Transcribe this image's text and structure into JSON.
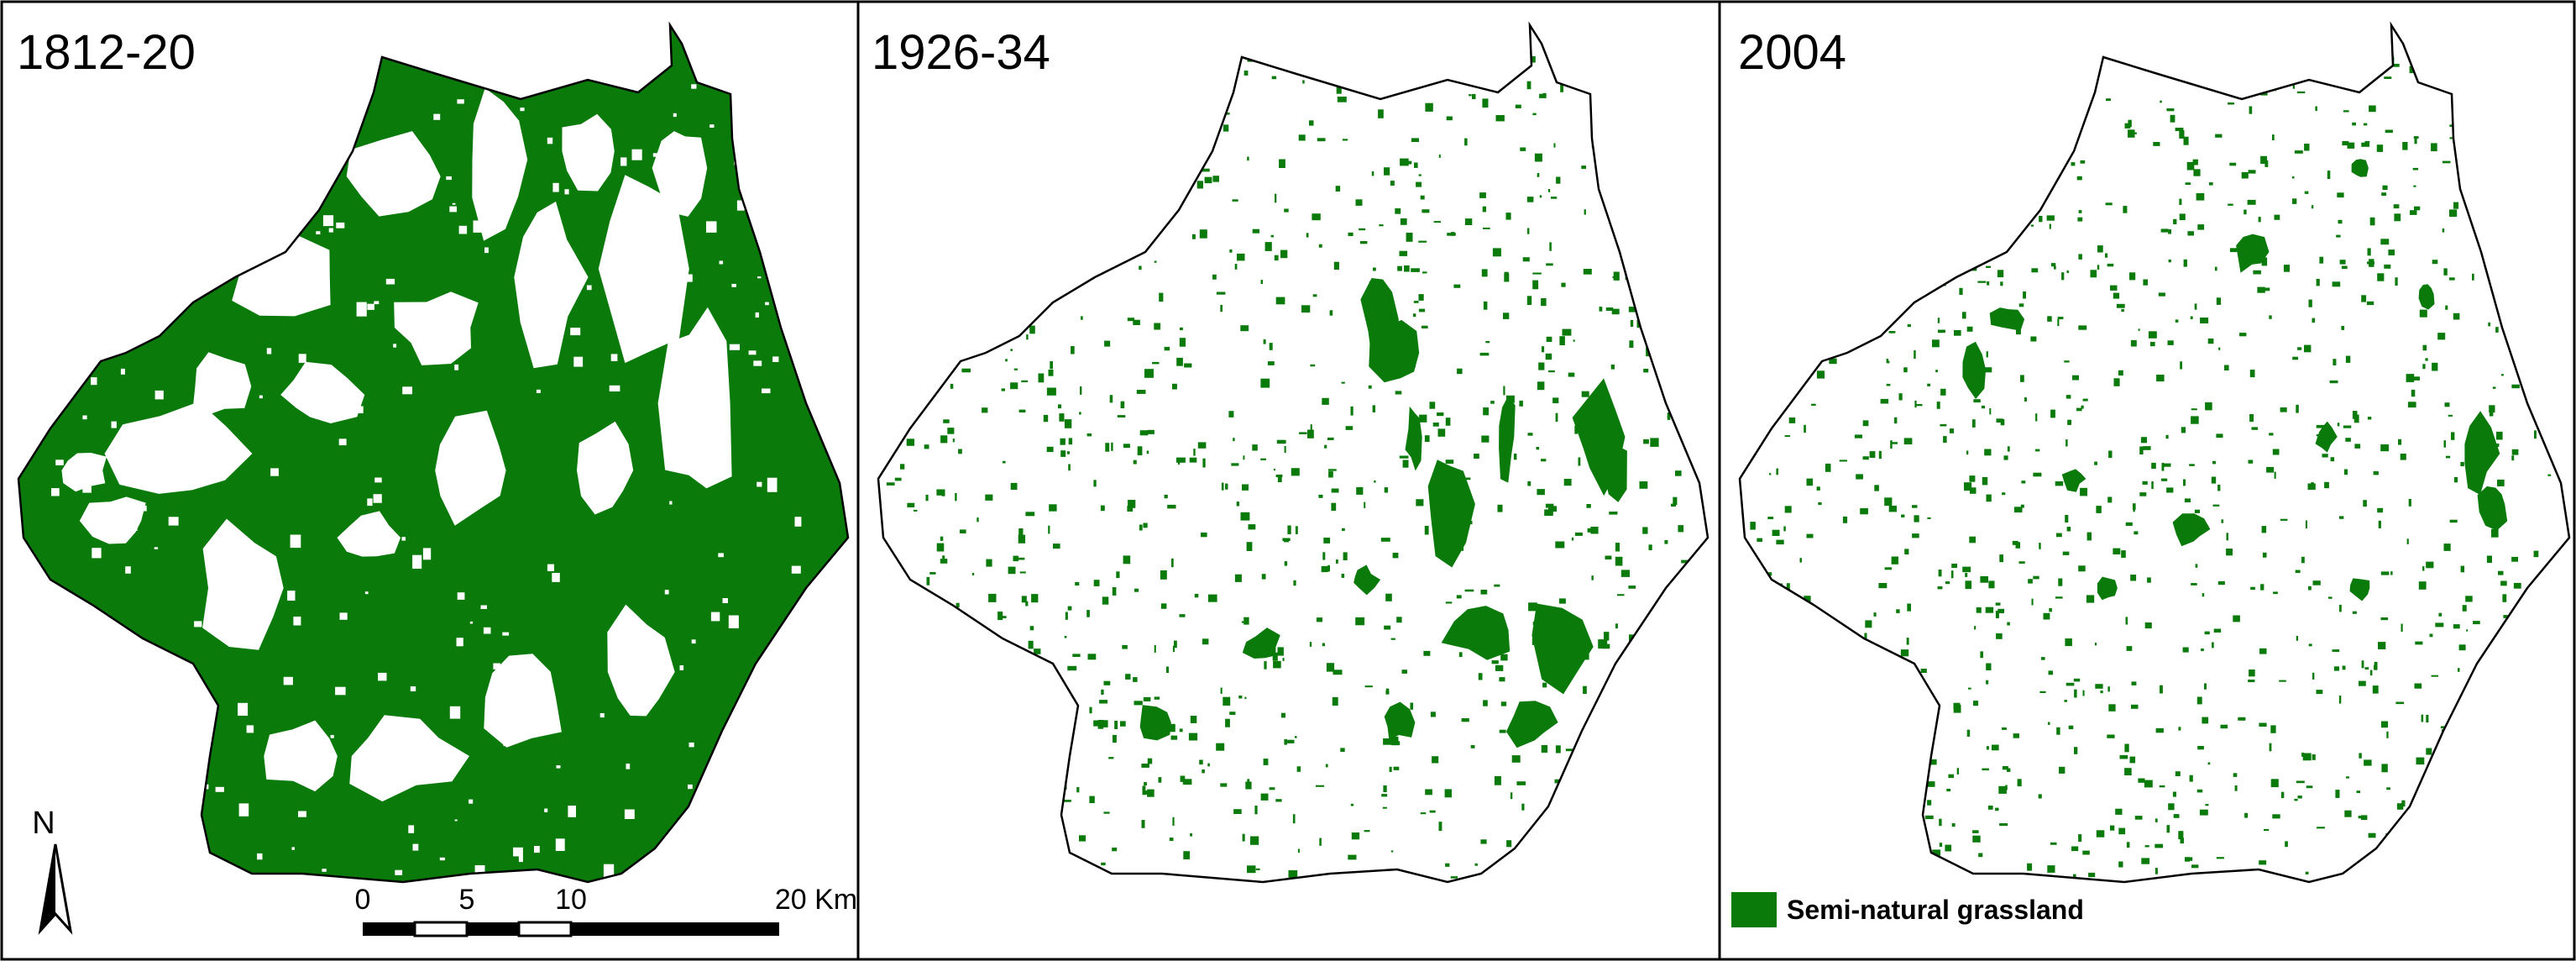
{
  "panels": [
    {
      "title": "1812-20",
      "grassland_density": "high"
    },
    {
      "title": "1926-34",
      "grassland_density": "low"
    },
    {
      "title": "2004",
      "grassland_density": "low"
    }
  ],
  "north_arrow": {
    "label": "N"
  },
  "scale_bar": {
    "ticks": [
      "0",
      "5",
      "10",
      "20 Km"
    ]
  },
  "legend": {
    "items": [
      {
        "label": "Semi-natural grassland",
        "color": "#0a7a0a"
      }
    ]
  },
  "colors": {
    "grassland": "#0a7a0a",
    "background": "#ffffff",
    "border": "#000000"
  }
}
